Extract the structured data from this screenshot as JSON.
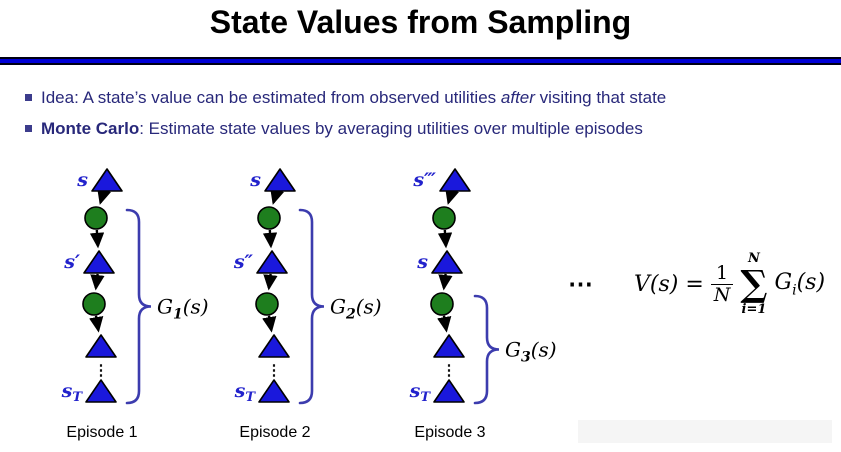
{
  "title": "State Values from Sampling",
  "bullets": [
    {
      "segments": [
        {
          "text": "Idea: A state’s value can be estimated from observed utilities "
        },
        {
          "text": "after",
          "style": "italic"
        },
        {
          "text": " visiting that state"
        }
      ]
    },
    {
      "segments": [
        {
          "text": "Monte Carlo",
          "style": "bold"
        },
        {
          "text": ": Estimate state values by averaging utilities over multiple episodes"
        }
      ]
    }
  ],
  "episodes": [
    {
      "name": "Episode 1",
      "nodes": [
        {
          "type": "triangle",
          "label": "s"
        },
        {
          "type": "circle"
        },
        {
          "type": "triangle",
          "label": "s′"
        },
        {
          "type": "circle"
        },
        {
          "type": "triangle"
        },
        {
          "type": "dots",
          "glyph": "⋮"
        },
        {
          "type": "triangle",
          "label": "s",
          "label_sub": "T"
        }
      ],
      "brace_from": 1,
      "return_label": {
        "base": "G",
        "sub": "1",
        "arg": "(s)"
      }
    },
    {
      "name": "Episode 2",
      "nodes": [
        {
          "type": "triangle",
          "label": "s"
        },
        {
          "type": "circle"
        },
        {
          "type": "triangle",
          "label": "s″"
        },
        {
          "type": "circle"
        },
        {
          "type": "triangle"
        },
        {
          "type": "dots",
          "glyph": "⋮"
        },
        {
          "type": "triangle",
          "label": "s",
          "label_sub": "T"
        }
      ],
      "brace_from": 1,
      "return_label": {
        "base": "G",
        "sub": "2",
        "arg": "(s)"
      }
    },
    {
      "name": "Episode 3",
      "nodes": [
        {
          "type": "triangle",
          "label": "s‴"
        },
        {
          "type": "circle"
        },
        {
          "type": "triangle",
          "label": "s"
        },
        {
          "type": "circle"
        },
        {
          "type": "triangle"
        },
        {
          "type": "dots",
          "glyph": "⋮"
        },
        {
          "type": "triangle",
          "label": "s",
          "label_sub": "T"
        }
      ],
      "brace_from": 3,
      "return_label": {
        "base": "G",
        "sub": "3",
        "arg": "(s)"
      }
    }
  ],
  "ellipsis": "⋯",
  "formula": {
    "lhs": "V(s)",
    "eq": "=",
    "numerator": "1",
    "denominator": "N",
    "sum_symbol": "∑",
    "sum_upper": "N",
    "sum_lower": "i=1",
    "term_base": "G",
    "term_sub": "i",
    "term_arg": "(s)"
  },
  "colors": {
    "triangle_fill": "#1a18dc",
    "triangle_stroke": "#000000",
    "circle_fill": "#1e7e1e",
    "circle_stroke": "#000000",
    "arrow": "#000000",
    "brace": "#3c3cae",
    "state_label": "#2222cc",
    "return_label": "#000000",
    "caption": "#000000",
    "bullet_text": "#28287a",
    "rule_blue": "#0000d6"
  }
}
